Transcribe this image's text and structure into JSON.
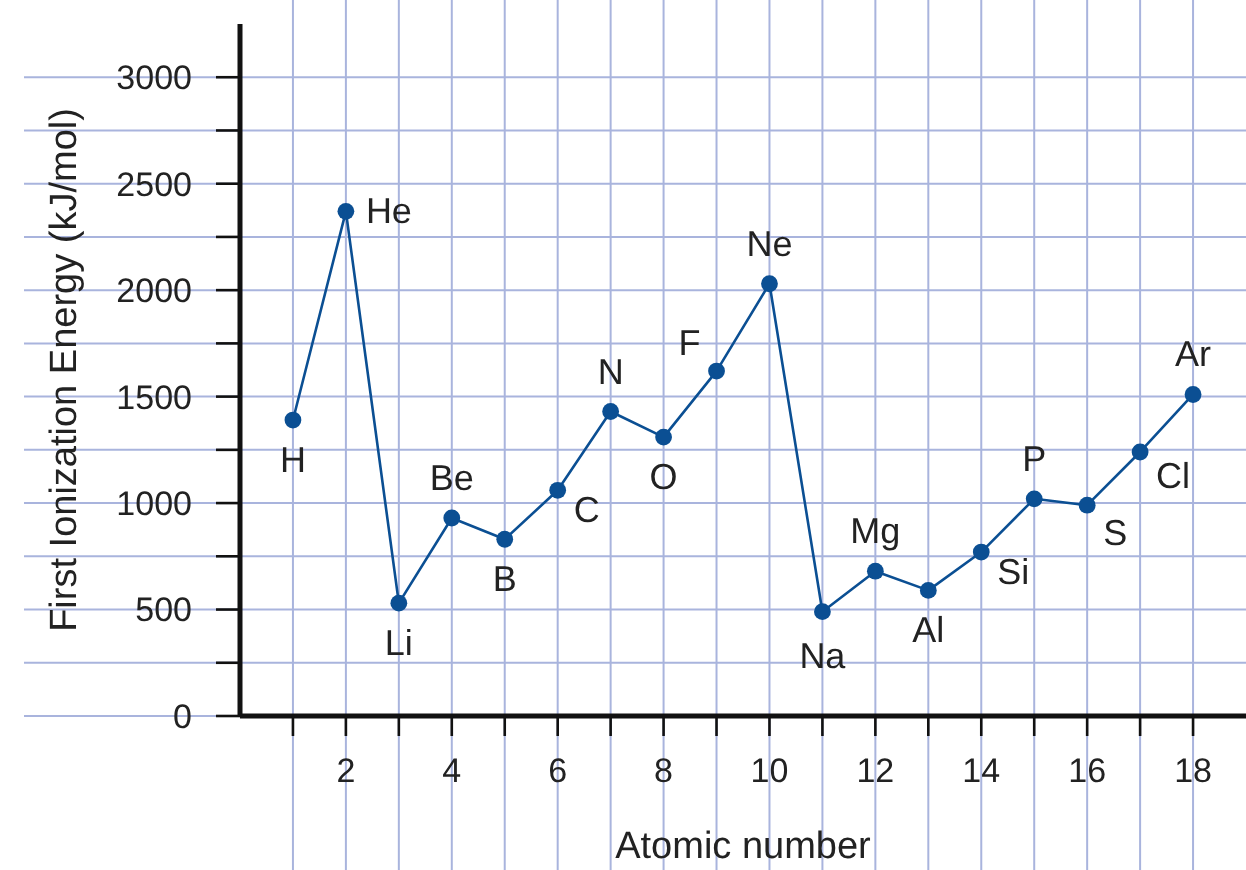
{
  "chart_data": {
    "type": "line",
    "xlabel": "Atomic number",
    "ylabel": "First Ionization Energy (kJ/mol)",
    "x": [
      1,
      2,
      3,
      4,
      5,
      6,
      7,
      8,
      9,
      10,
      11,
      12,
      13,
      14,
      15,
      16,
      17,
      18
    ],
    "series": [
      {
        "color": "#0b4f93",
        "values": [
          1390,
          2370,
          530,
          930,
          830,
          1060,
          1430,
          1310,
          1620,
          2030,
          490,
          680,
          590,
          770,
          1020,
          990,
          1240,
          1510
        ]
      }
    ],
    "marker": "circle",
    "grid": true,
    "xlim": [
      0,
      19
    ],
    "xticks": [
      {
        "value": 1,
        "label": null
      },
      2,
      {
        "value": 3,
        "label": null
      },
      4,
      {
        "value": 5,
        "label": null
      },
      6,
      {
        "value": 7,
        "label": null
      },
      8,
      {
        "value": 9,
        "label": null
      },
      10,
      {
        "value": 11,
        "label": null
      },
      12,
      {
        "value": 13,
        "label": null
      },
      14,
      {
        "value": 15,
        "label": null
      },
      16,
      {
        "value": 17,
        "label": null
      },
      18
    ],
    "ylim": [
      0,
      3250
    ],
    "yticks": [
      0,
      {
        "value": 250,
        "label": null
      },
      500,
      {
        "value": 750,
        "label": null
      },
      1000,
      {
        "value": 1250,
        "label": null
      },
      1500,
      {
        "value": 1750,
        "label": null
      },
      2000,
      {
        "value": 2250,
        "label": null
      },
      2500,
      {
        "value": 2750,
        "label": null
      },
      3000
    ],
    "annotations": [
      {
        "text": "H",
        "x": 1,
        "y": 1390
      },
      {
        "text": "He",
        "x": 2,
        "y": 2370
      },
      {
        "text": "Li",
        "x": 3,
        "y": 530
      },
      {
        "text": "Be",
        "x": 4,
        "y": 930
      },
      {
        "text": "B",
        "x": 5,
        "y": 830
      },
      {
        "text": "C",
        "x": 6,
        "y": 1060
      },
      {
        "text": "N",
        "x": 7,
        "y": 1430
      },
      {
        "text": "O",
        "x": 8,
        "y": 1310
      },
      {
        "text": "F",
        "x": 9,
        "y": 1620
      },
      {
        "text": "Ne",
        "x": 10,
        "y": 2030
      },
      {
        "text": "Na",
        "x": 11,
        "y": 490
      },
      {
        "text": "Mg",
        "x": 12,
        "y": 680
      },
      {
        "text": "Al",
        "x": 13,
        "y": 590
      },
      {
        "text": "Si",
        "x": 14,
        "y": 770
      },
      {
        "text": "P",
        "x": 15,
        "y": 1020
      },
      {
        "text": "S",
        "x": 16,
        "y": 990
      },
      {
        "text": "Cl",
        "x": 17,
        "y": 1240
      },
      {
        "text": "Ar",
        "x": 18,
        "y": 1510
      }
    ]
  }
}
